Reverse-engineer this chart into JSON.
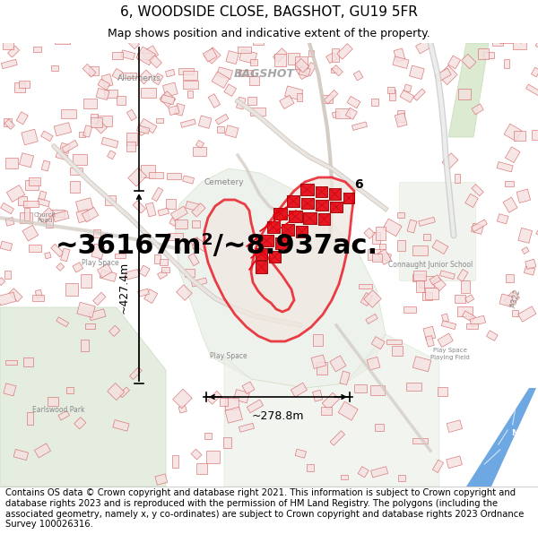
{
  "title_line1": "6, WOODSIDE CLOSE, BAGSHOT, GU19 5FR",
  "title_line2": "Map shows position and indicative extent of the property.",
  "area_text": "~36167m²/~8.937ac.",
  "width_label": "~278.8m",
  "height_label": "~427.4m",
  "property_label": "6",
  "footer_text": "Contains OS data © Crown copyright and database right 2021. This information is subject to Crown copyright and database rights 2023 and is reproduced with the permission of\nHM Land Registry. The polygons (including the associated geometry, namely x, y\nco-ordinates) are subject to Crown copyright and database rights 2023 Ordnance Survey\n100026316.",
  "bg_color": "#ffffff",
  "map_bg": "#f2eeea",
  "road_bg": "#ffffff",
  "green_area": "#dde8d8",
  "red_color": "#e8000d",
  "red_light": "#e8b4b8",
  "red_fill": "#f0c8c8",
  "building_edge": "#d46060",
  "building_fill": "#f5e0e0",
  "blue_motorway": "#4488cc",
  "gray_road": "#aaaaaa",
  "title_fontsize": 11,
  "subtitle_fontsize": 9,
  "area_fontsize": 22,
  "label_fontsize": 9,
  "footer_fontsize": 7.2,
  "map_label_color": "#888888",
  "map_label_size": 6.5
}
